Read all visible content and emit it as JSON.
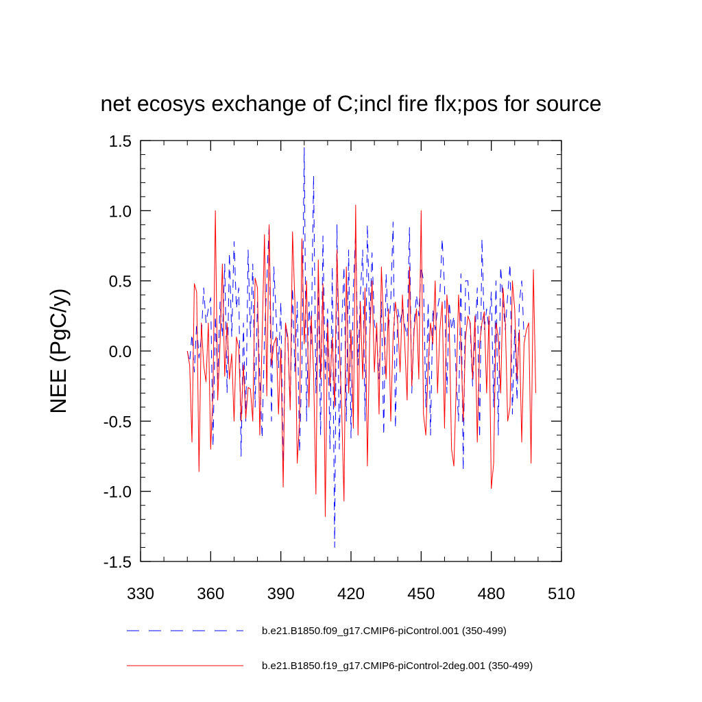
{
  "chart_data": {
    "type": "line",
    "title": "net ecosys exchange of C;incl fire flx;pos for source",
    "xlabel": "",
    "ylabel": "NEE  (PgC/y)",
    "xlim": [
      330,
      510
    ],
    "ylim": [
      -1.5,
      1.5
    ],
    "xticks": [
      "330",
      "360",
      "390",
      "420",
      "450",
      "480",
      "510"
    ],
    "yticks": [
      "1.5",
      "1.0",
      "0.5",
      "0.0",
      "-0.5",
      "-1.0",
      "-1.5"
    ],
    "legend_position": "bottom",
    "series": [
      {
        "name": "b.e21.B1850.f09_g17.CMIP6-piControl.001 (350-499)",
        "color": "#0000ff",
        "style": "dashed",
        "x_start": 350,
        "values": [
          0.0,
          -0.08,
          0.12,
          -0.15,
          0.2,
          -0.05,
          0.1,
          0.45,
          0.2,
          0.3,
          0.38,
          -0.68,
          0.25,
          -0.2,
          0.35,
          0.1,
          0.62,
          -0.3,
          0.7,
          0.1,
          0.78,
          0.3,
          0.45,
          -0.75,
          0.2,
          -0.5,
          0.72,
          0.1,
          0.62,
          -0.4,
          0.35,
          -0.2,
          -0.62,
          0.1,
          0.5,
          0.9,
          -0.5,
          0.6,
          0.25,
          -0.12,
          0.35,
          -0.85,
          0.2,
          0.05,
          -0.4,
          0.45,
          -0.15,
          0.35,
          -0.72,
          -0.1,
          1.45,
          -0.5,
          0.35,
          0.05,
          1.25,
          -0.3,
          0.5,
          -0.6,
          0.82,
          -0.2,
          0.3,
          -0.7,
          0.6,
          -1.4,
          0.9,
          -0.7,
          0.15,
          0.6,
          -0.5,
          0.72,
          -0.62,
          0.45,
          0.85,
          -0.1,
          0.4,
          0.72,
          -0.5,
          0.9,
          0.2,
          0.7,
          0.2,
          0.1,
          -0.2,
          0.35,
          -0.6,
          0.55,
          0.15,
          0.35,
          0.92,
          -0.55,
          0.3,
          0.2,
          0.3,
          0.18,
          0.1,
          0.88,
          -0.3,
          0.2,
          0.4,
          0.25,
          0.6,
          0.5,
          -0.4,
          0.35,
          -0.6,
          0.3,
          0.15,
          0.3,
          0.4,
          0.8,
          0.45,
          -0.3,
          0.35,
          0.15,
          0.25,
          -0.2,
          -0.5,
          0.55,
          -0.85,
          0.5,
          0.5,
          0.15,
          -0.25,
          0.1,
          0.45,
          -0.62,
          0.8,
          0.15,
          0.3,
          0.15,
          0.42,
          -0.4,
          0.5,
          -0.6,
          0.6,
          0.35,
          0.15,
          0.4,
          0.62,
          -0.45,
          0.15,
          -0.35,
          0.35,
          0.5,
          0.1
        ]
      },
      {
        "name": "b.e21.B1850.f19_g17.CMIP6-piControl-2deg.001 (350-499)",
        "color": "#ff0000",
        "style": "solid",
        "x_start": 350,
        "values": [
          0.0,
          -0.1,
          -0.65,
          0.48,
          0.42,
          -0.86,
          0.2,
          -0.1,
          -0.22,
          0.2,
          -0.7,
          -0.28,
          1.0,
          -0.35,
          0.05,
          0.62,
          -0.18,
          0.2,
          -0.2,
          -0.02,
          -0.5,
          0.1,
          0.02,
          -0.5,
          -0.1,
          -0.48,
          -0.26,
          -0.27,
          -0.5,
          0.52,
          0.45,
          -0.6,
          0.1,
          0.83,
          -0.32,
          0.9,
          -0.1,
          0.05,
          0.1,
          -0.45,
          0.02,
          -0.97,
          0.2,
          0.1,
          -0.42,
          0.85,
          0.35,
          -0.8,
          -0.5,
          0.8,
          0.05,
          0.5,
          -0.4,
          0.25,
          -0.15,
          -1.02,
          0.65,
          -0.2,
          0.48,
          -1.18,
          0.2,
          -0.25,
          0.1,
          -0.4,
          0.72,
          0.05,
          -0.4,
          -1.07,
          0.6,
          -0.3,
          0.15,
          -0.55,
          1.04,
          -0.6,
          0.35,
          -0.2,
          0.45,
          -0.82,
          0.1,
          0.5,
          -0.15,
          0.2,
          -0.45,
          0.6,
          0.15,
          -0.2,
          0.3,
          -0.5,
          0.1,
          0.35,
          0.2,
          -0.15,
          0.4,
          0.05,
          -0.35,
          0.6,
          -0.25,
          0.15,
          0.3,
          -0.2,
          1.0,
          -0.45,
          -0.6,
          -0.1,
          0.2,
          0.05,
          0.5,
          -0.3,
          0.15,
          0.35,
          -0.55,
          0.4,
          0.2,
          -0.7,
          -0.82,
          -0.25,
          0.4,
          0.05,
          -0.5,
          0.1,
          0.25,
          0.2,
          -0.2,
          0.25,
          -0.65,
          0.05,
          0.2,
          0.28,
          -0.3,
          0.25,
          -0.98,
          -0.8,
          0.2,
          0.1,
          -0.3,
          0.45,
          0.2,
          -0.5,
          -0.4,
          0.5,
          0.3,
          -0.2,
          0.15,
          -0.65,
          0.05,
          0.15,
          0.2,
          -0.8,
          0.58,
          -0.3
        ]
      }
    ]
  }
}
